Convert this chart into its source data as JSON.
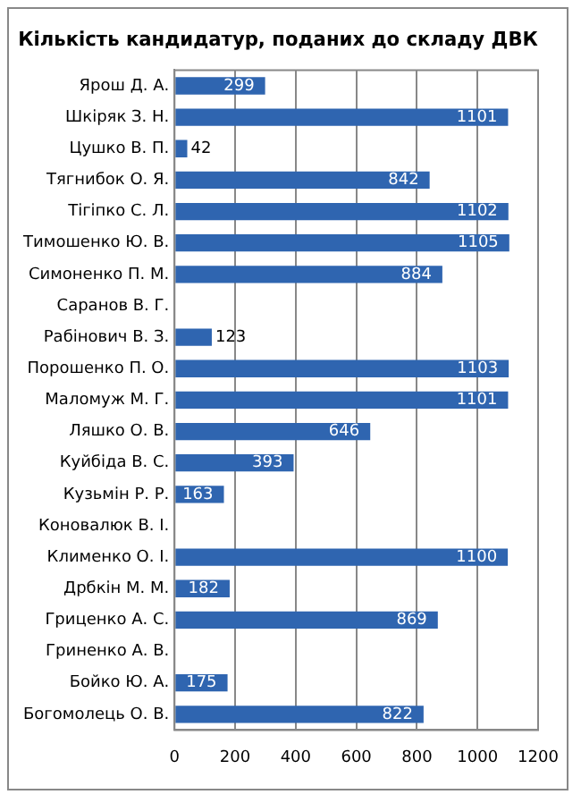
{
  "chart_data": {
    "type": "bar",
    "orientation": "horizontal",
    "title": "Кількість кандидатур, поданих до складу ДВК",
    "categories": [
      "Ярош Д. А.",
      "Шкіряк З. Н.",
      "Цушко В. П.",
      "Тягнибок О. Я.",
      "Тігіпко С. Л.",
      "Тимошенко Ю. В.",
      "Симоненко П. М.",
      "Саранов В. Г.",
      "Рабінович В. З.",
      "Порошенко П. О.",
      "Маломуж М. Г.",
      "Ляшко О. В.",
      "Куйбіда В. С.",
      "Кузьмін Р. Р.",
      "Коновалюк В. І.",
      "Клименко О. І.",
      "Дрбкін М. М.",
      "Гриценко А. С.",
      "Гриненко А. В.",
      "Бойко Ю. А.",
      "Богомолець О. В."
    ],
    "values": [
      299,
      1101,
      42,
      842,
      1102,
      1105,
      884,
      null,
      123,
      1103,
      1101,
      646,
      393,
      163,
      null,
      1100,
      182,
      869,
      null,
      175,
      822
    ],
    "color": "#2f65b0",
    "xlim": [
      0,
      1200
    ],
    "xticks": [
      0,
      200,
      400,
      600,
      800,
      1000,
      1200
    ],
    "grid": "x",
    "data_labels": true
  }
}
